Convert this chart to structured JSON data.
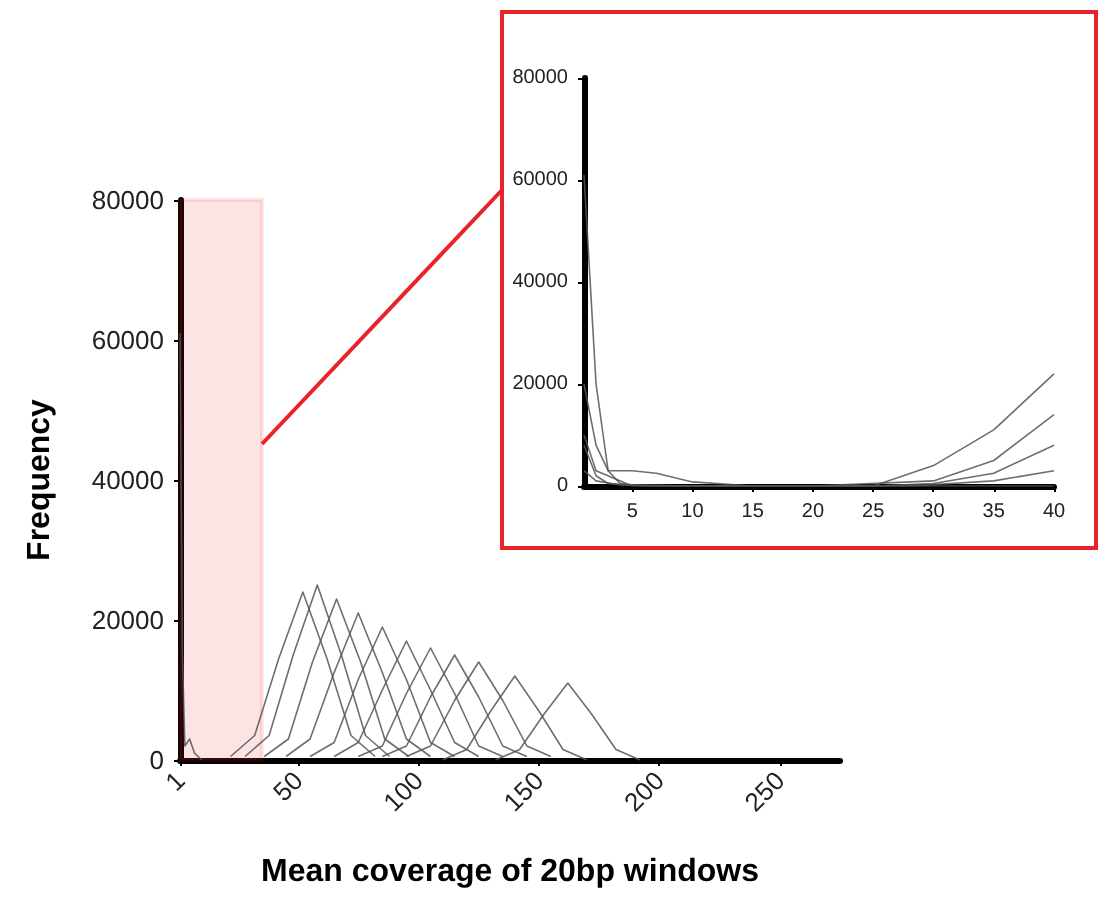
{
  "chart_data": [
    {
      "type": "line",
      "xlabel": "Mean coverage of 20bp windows",
      "ylabel": "Frequency",
      "xlim": [
        1,
        275
      ],
      "xticks": [
        1,
        50,
        100,
        150,
        200,
        250
      ],
      "ylim": [
        0,
        80000
      ],
      "yticks": [
        0,
        20000,
        40000,
        60000,
        80000
      ],
      "grid": false,
      "bands": [
        {
          "axis": "x",
          "from": 1,
          "to": 35,
          "color": "#e8242b"
        }
      ],
      "series": [
        {
          "color": "#555555",
          "x": [
            1,
            2,
            3,
            5,
            7,
            10
          ],
          "values": [
            61000,
            15000,
            2000,
            3000,
            1000,
            0
          ]
        },
        {
          "color": "#555555",
          "x": [
            22,
            32,
            42,
            52,
            62,
            72,
            82
          ],
          "values": [
            500,
            3500,
            14500,
            24000,
            14500,
            3500,
            500
          ]
        },
        {
          "color": "#555555",
          "x": [
            28,
            38,
            48,
            58,
            68,
            78,
            88
          ],
          "values": [
            500,
            3500,
            15000,
            25000,
            15000,
            3500,
            500
          ]
        },
        {
          "color": "#555555",
          "x": [
            36,
            46,
            56,
            66,
            76,
            86,
            96
          ],
          "values": [
            500,
            3000,
            14000,
            23000,
            14000,
            3000,
            500
          ]
        },
        {
          "color": "#555555",
          "x": [
            45,
            55,
            65,
            75,
            85,
            95,
            105
          ],
          "values": [
            500,
            3000,
            12500,
            21000,
            12500,
            3000,
            500
          ]
        },
        {
          "color": "#555555",
          "x": [
            55,
            65,
            75,
            85,
            95,
            105,
            115
          ],
          "values": [
            500,
            2500,
            11500,
            19000,
            11500,
            2500,
            500
          ]
        },
        {
          "color": "#555555",
          "x": [
            65,
            75,
            85,
            95,
            105,
            115,
            125
          ],
          "values": [
            500,
            2500,
            10000,
            17000,
            10000,
            2500,
            500
          ]
        },
        {
          "color": "#555555",
          "x": [
            75,
            85,
            95,
            105,
            115,
            125,
            135
          ],
          "values": [
            500,
            2000,
            9500,
            16000,
            9500,
            2000,
            500
          ]
        },
        {
          "color": "#555555",
          "x": [
            85,
            95,
            105,
            115,
            125,
            135,
            145
          ],
          "values": [
            500,
            2000,
            9000,
            15000,
            9000,
            2000,
            500
          ]
        },
        {
          "color": "#555555",
          "x": [
            95,
            105,
            115,
            125,
            135,
            145,
            155
          ],
          "values": [
            500,
            2000,
            8500,
            14000,
            8500,
            2000,
            500
          ]
        },
        {
          "color": "#555555",
          "x": [
            110,
            120,
            130,
            140,
            150,
            160,
            170
          ],
          "values": [
            0,
            1500,
            7000,
            12000,
            7000,
            1500,
            0
          ]
        },
        {
          "color": "#555555",
          "x": [
            132,
            142,
            152,
            162,
            172,
            182,
            192
          ],
          "values": [
            0,
            1500,
            6500,
            11000,
            6500,
            1500,
            0
          ]
        }
      ]
    },
    {
      "type": "line",
      "xlim": [
        1,
        40
      ],
      "xticks": [
        5,
        10,
        15,
        20,
        25,
        30,
        35,
        40
      ],
      "ylim": [
        0,
        80000
      ],
      "yticks": [
        0,
        20000,
        40000,
        60000,
        80000
      ],
      "grid": false,
      "series": [
        {
          "color": "#555555",
          "x": [
            1,
            2,
            3,
            4,
            6,
            10,
            40
          ],
          "values": [
            61000,
            20000,
            3000,
            500,
            0,
            0,
            0
          ]
        },
        {
          "color": "#555555",
          "x": [
            1,
            2,
            3,
            5,
            7,
            10,
            15,
            25,
            30,
            35,
            40
          ],
          "values": [
            20000,
            8000,
            3000,
            3000,
            2500,
            800,
            0,
            0,
            4000,
            11000,
            22000
          ]
        },
        {
          "color": "#555555",
          "x": [
            1,
            2,
            3,
            5,
            10,
            20,
            30,
            35,
            40
          ],
          "values": [
            8000,
            2000,
            500,
            200,
            0,
            0,
            1000,
            5000,
            14000
          ]
        },
        {
          "color": "#555555",
          "x": [
            1,
            2,
            4,
            10,
            25,
            30,
            35,
            40
          ],
          "values": [
            3000,
            1000,
            200,
            0,
            0,
            500,
            2500,
            8000
          ]
        },
        {
          "color": "#555555",
          "x": [
            1,
            2,
            5,
            28,
            35,
            40
          ],
          "values": [
            10000,
            3000,
            0,
            0,
            1000,
            3000
          ]
        }
      ]
    }
  ]
}
